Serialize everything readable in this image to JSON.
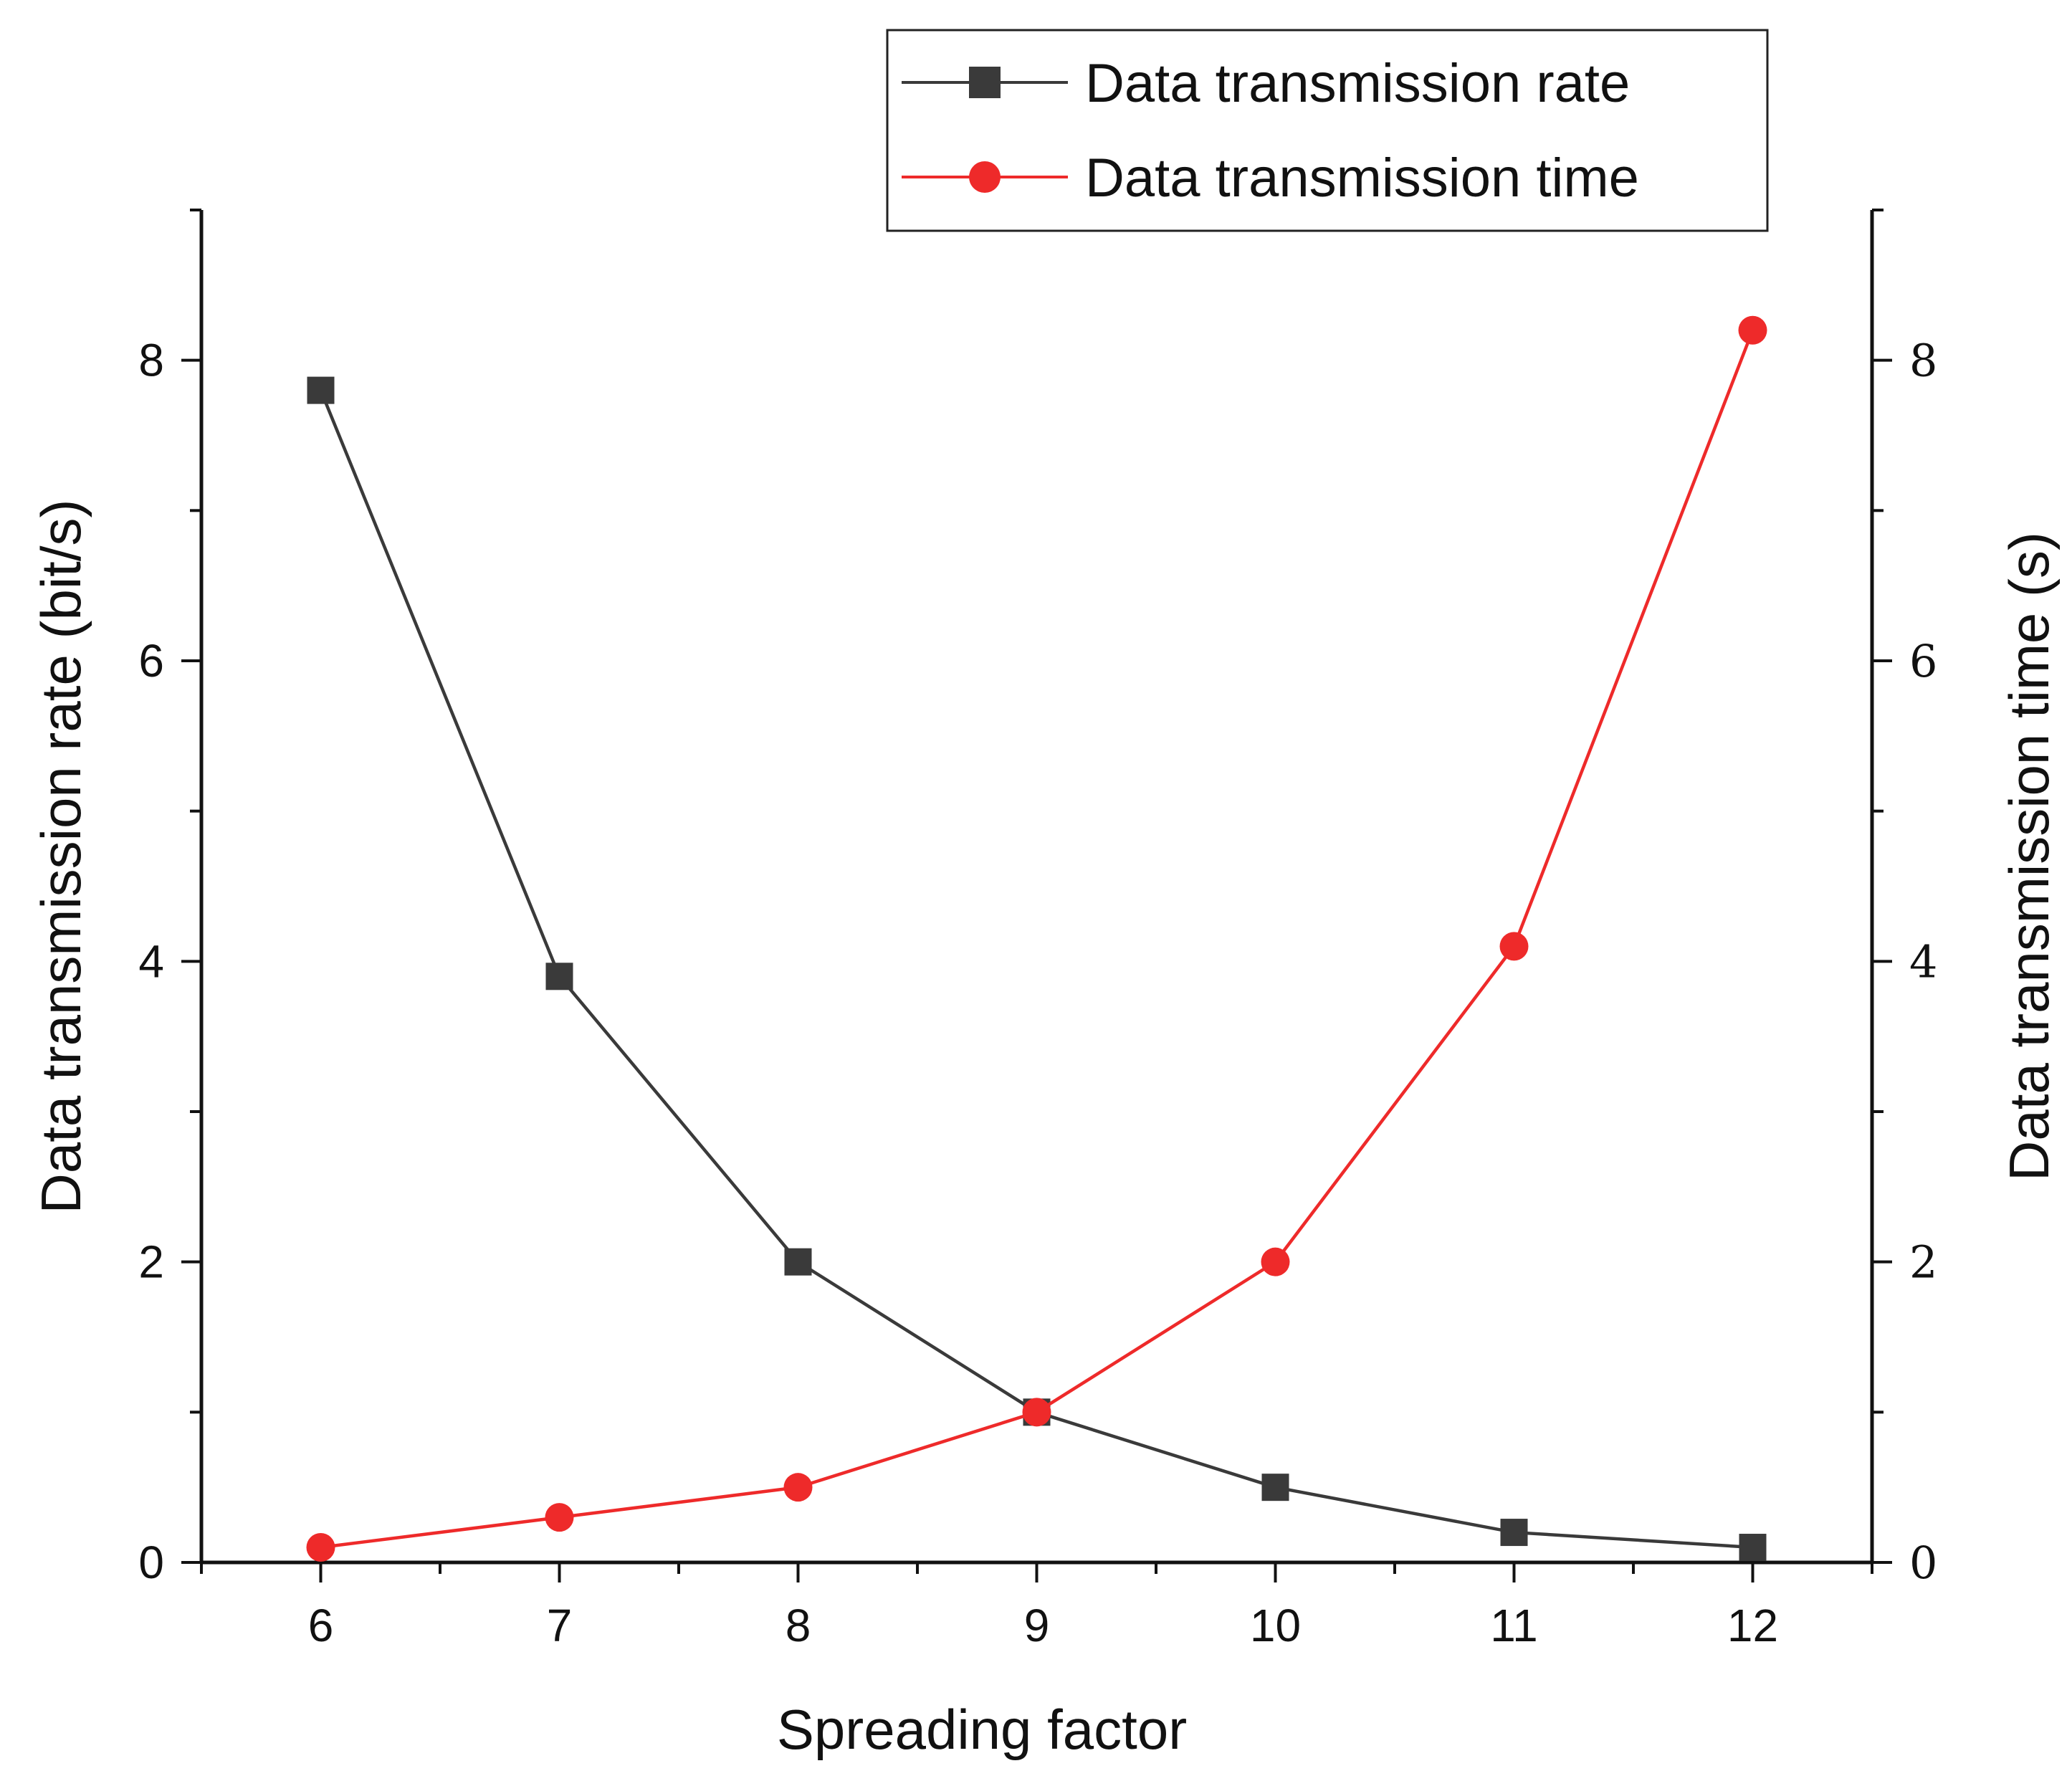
{
  "chart_data": {
    "type": "line",
    "x": [
      6,
      7,
      8,
      9,
      10,
      11,
      12
    ],
    "xlabel": "Spreading factor",
    "ylabel_left": "Data transmission rate (bit/s)",
    "ylabel_right": "Data transmission time (s)",
    "xlim": [
      5.5,
      12.5
    ],
    "ylim_left": [
      0,
      9
    ],
    "ylim_right": [
      0,
      9
    ],
    "x_ticks": [
      "6",
      "7",
      "8",
      "9",
      "10",
      "11",
      "12"
    ],
    "y_ticks_left": [
      "0",
      "2",
      "4",
      "6",
      "8"
    ],
    "y_ticks_right": [
      "0",
      "2",
      "4",
      "6",
      "8"
    ],
    "grid": false,
    "legend_position": "top-right",
    "series": [
      {
        "name": "Data transmission rate",
        "axis": "left",
        "marker": "square",
        "color": "#3a3a3a",
        "values": [
          7.8,
          3.9,
          2.0,
          1.0,
          0.5,
          0.2,
          0.1
        ]
      },
      {
        "name": "Data transmission time",
        "axis": "right",
        "marker": "circle",
        "color": "#ee2a2a",
        "values": [
          0.1,
          0.3,
          0.5,
          1.0,
          2.0,
          4.1,
          8.2
        ]
      }
    ]
  }
}
